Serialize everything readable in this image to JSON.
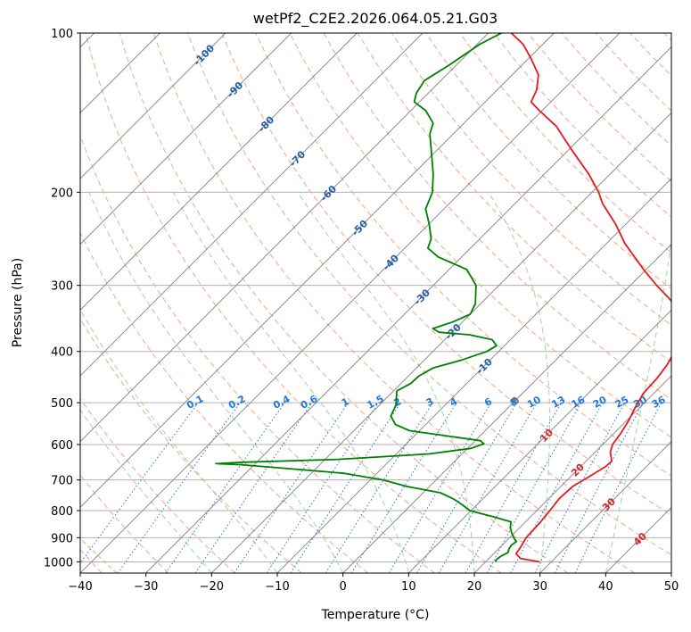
{
  "chart_data": {
    "type": "line",
    "title": "wetPf2_C2E2.2026.064.05.21.G03",
    "xlabel": "Temperature (°C)",
    "ylabel": "Pressure (hPa)",
    "xlim": [
      -40,
      50
    ],
    "ylim": [
      1050,
      100
    ],
    "y_scale": "log",
    "grid": true,
    "x_ticks": [
      "−40",
      "−30",
      "−20",
      "−10",
      "0",
      "10",
      "20",
      "30",
      "40",
      "50"
    ],
    "x_tick_values": [
      -40,
      -30,
      -20,
      -10,
      0,
      10,
      20,
      30,
      40,
      50
    ],
    "y_ticks": [
      "100",
      "200",
      "300",
      "400",
      "500",
      "600",
      "700",
      "800",
      "900",
      "1000"
    ],
    "y_tick_values": [
      100,
      200,
      300,
      400,
      500,
      600,
      700,
      800,
      900,
      1000
    ],
    "series": [
      {
        "role": "temperature",
        "color": "#e41a1c",
        "points": [
          [
            1000,
            28.2
          ],
          [
            985,
            24.8
          ],
          [
            965,
            23.4
          ],
          [
            945,
            23.2
          ],
          [
            925,
            22.9
          ],
          [
            900,
            22.5
          ],
          [
            870,
            22.4
          ],
          [
            840,
            22.3
          ],
          [
            800,
            22.0
          ],
          [
            760,
            21.6
          ],
          [
            720,
            21.8
          ],
          [
            690,
            22.8
          ],
          [
            660,
            23.8
          ],
          [
            645,
            23.9
          ],
          [
            620,
            22.3
          ],
          [
            600,
            21.5
          ],
          [
            570,
            21.0
          ],
          [
            540,
            20.3
          ],
          [
            510,
            19.3
          ],
          [
            480,
            18.4
          ],
          [
            450,
            18.2
          ],
          [
            425,
            17.7
          ],
          [
            400,
            16.8
          ],
          [
            370,
            15.4
          ],
          [
            350,
            13.0
          ],
          [
            320,
            8.4
          ],
          [
            300,
            4.0
          ],
          [
            280,
            -0.4
          ],
          [
            250,
            -7.2
          ],
          [
            230,
            -11.5
          ],
          [
            210,
            -16.7
          ],
          [
            200,
            -19.0
          ],
          [
            185,
            -23.2
          ],
          [
            165,
            -30.0
          ],
          [
            150,
            -35.5
          ],
          [
            140,
            -40.5
          ],
          [
            135,
            -43.0
          ],
          [
            128,
            -44.0
          ],
          [
            120,
            -46.0
          ],
          [
            112,
            -49.5
          ],
          [
            105,
            -53.0
          ],
          [
            100,
            -56.5
          ]
        ]
      },
      {
        "role": "dewpoint",
        "color": "#008000",
        "points": [
          [
            1000,
            21.5
          ],
          [
            990,
            21.3
          ],
          [
            975,
            21.5
          ],
          [
            960,
            22.0
          ],
          [
            945,
            21.6
          ],
          [
            930,
            21.4
          ],
          [
            915,
            21.6
          ],
          [
            900,
            20.6
          ],
          [
            880,
            19.5
          ],
          [
            860,
            18.5
          ],
          [
            840,
            17.8
          ],
          [
            820,
            14.0
          ],
          [
            800,
            9.8
          ],
          [
            780,
            7.8
          ],
          [
            760,
            5.5
          ],
          [
            740,
            2.6
          ],
          [
            720,
            -3.5
          ],
          [
            700,
            -8.0
          ],
          [
            680,
            -15.0
          ],
          [
            665,
            -25.0
          ],
          [
            655,
            -32.0
          ],
          [
            652,
            -36.0
          ],
          [
            648,
            -32.0
          ],
          [
            640,
            -18.0
          ],
          [
            625,
            -5.0
          ],
          [
            610,
            0.5
          ],
          [
            598,
            1.8
          ],
          [
            590,
            0.8
          ],
          [
            578,
            -5.0
          ],
          [
            565,
            -11.5
          ],
          [
            550,
            -14.6
          ],
          [
            530,
            -16.6
          ],
          [
            505,
            -17.5
          ],
          [
            490,
            -18.5
          ],
          [
            475,
            -19.5
          ],
          [
            460,
            -18.5
          ],
          [
            445,
            -18.4
          ],
          [
            430,
            -17.5
          ],
          [
            415,
            -14.3
          ],
          [
            400,
            -11.8
          ],
          [
            390,
            -11.2
          ],
          [
            380,
            -12.8
          ],
          [
            372,
            -17.0
          ],
          [
            368,
            -22.0
          ],
          [
            362,
            -23.5
          ],
          [
            352,
            -21.5
          ],
          [
            340,
            -20.0
          ],
          [
            325,
            -20.8
          ],
          [
            300,
            -23.5
          ],
          [
            280,
            -27.3
          ],
          [
            265,
            -33.6
          ],
          [
            255,
            -36.5
          ],
          [
            245,
            -37.4
          ],
          [
            230,
            -39.9
          ],
          [
            215,
            -42.8
          ],
          [
            200,
            -44.3
          ],
          [
            185,
            -46.9
          ],
          [
            170,
            -50.1
          ],
          [
            155,
            -53.6
          ],
          [
            148,
            -54.7
          ],
          [
            140,
            -57.8
          ],
          [
            135,
            -60.8
          ],
          [
            130,
            -61.8
          ],
          [
            123,
            -62.5
          ],
          [
            115,
            -61.1
          ],
          [
            105,
            -59.6
          ],
          [
            100,
            -58.0
          ]
        ]
      }
    ],
    "isotherm_values": [
      -180,
      -170,
      -160,
      -150,
      -140,
      -130,
      -120,
      -110,
      -100,
      -90,
      -80,
      -70,
      -60,
      -50,
      -40,
      -30,
      -20,
      -10,
      0,
      10,
      20,
      30,
      40,
      50
    ],
    "dry_adiabat_values": [
      -50,
      -40,
      -30,
      -20,
      -10,
      0,
      10,
      20,
      30,
      40,
      50,
      60,
      70,
      80,
      90,
      100,
      110,
      120,
      130,
      140,
      150,
      160,
      170,
      180,
      190,
      200,
      210,
      220,
      230,
      240,
      250,
      260,
      270,
      280,
      290,
      300,
      310
    ],
    "moist_adiabat_values": [
      -20,
      -10,
      0,
      10,
      20,
      30,
      40
    ],
    "isotherm_labels": [
      "-100",
      "-90",
      "-80",
      "-70",
      "-60",
      "-50",
      "-40",
      "-30",
      "-20",
      "-10",
      "0",
      "10",
      "20",
      "30",
      "40"
    ],
    "isotherm_label_values": [
      -100,
      -90,
      -80,
      -70,
      -60,
      -50,
      -40,
      -30,
      -20,
      -10,
      0,
      10,
      20,
      30,
      40
    ],
    "mixing_ratio_labels": [
      "0.1",
      "0.2",
      "0.4",
      "0.6",
      "1",
      "1.5",
      "2",
      "3",
      "4",
      "6",
      "8",
      "10",
      "13",
      "16",
      "20",
      "25",
      "30",
      "36"
    ],
    "mixing_ratio_values": [
      0.1,
      0.2,
      0.4,
      0.6,
      1,
      1.5,
      2,
      3,
      4,
      6,
      8,
      10,
      13,
      16,
      20,
      25,
      30,
      36
    ],
    "colors": {
      "isotherm": "#808080",
      "isobar": "#b0b0b0",
      "dry_adiabat": "#f4a582",
      "moist_adiabat": "#9fd49f",
      "mixing_ratio": "#1f78d8",
      "label_cold": "#1f5fa8",
      "label_zero": "#707070",
      "label_warm": "#d62728",
      "ice_curve": "#d2b48c"
    }
  }
}
